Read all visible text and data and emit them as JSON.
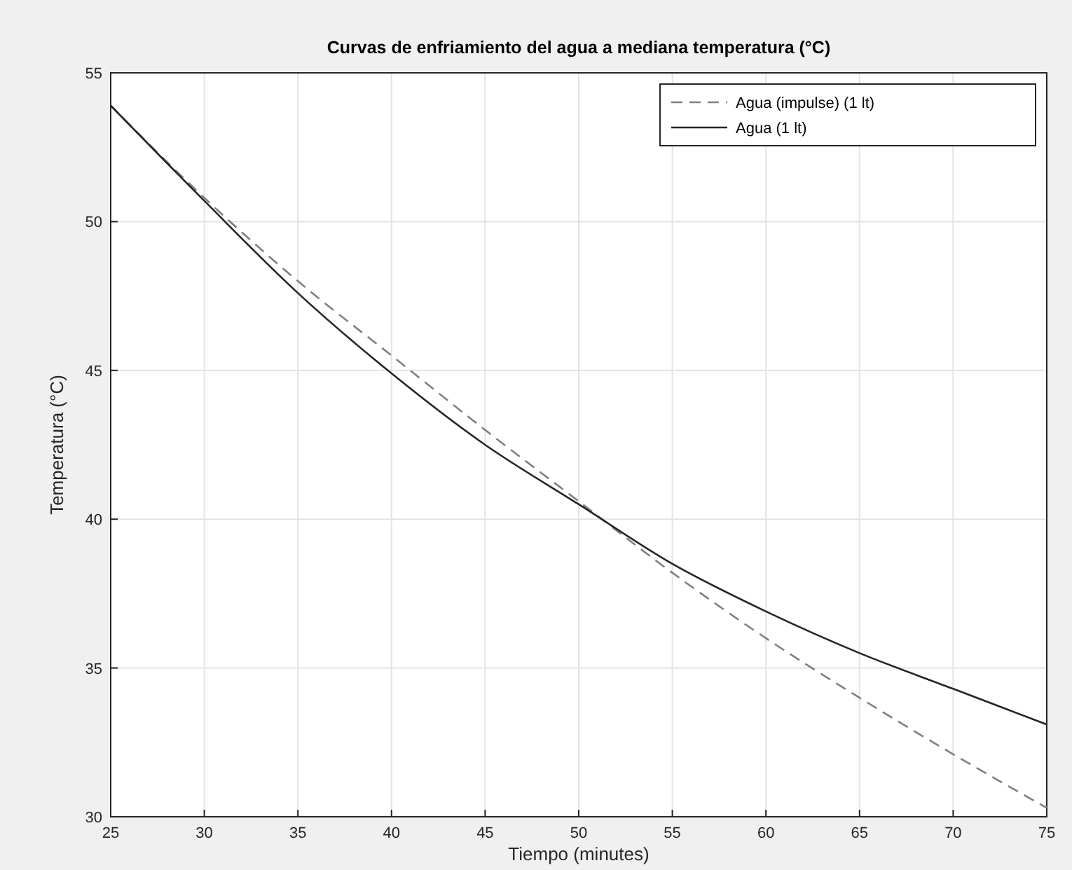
{
  "chart_data": {
    "type": "line",
    "title": "Curvas de enfriamiento del agua a mediana temperatura (°C)",
    "xlabel": "Tiempo (minutes)",
    "ylabel": "Temperatura (°C)",
    "x": [
      25,
      30,
      35,
      40,
      45,
      50,
      55,
      60,
      65,
      70,
      75
    ],
    "series": [
      {
        "name": "Agua (impulse) (1 lt)",
        "color": "#808080",
        "line_style": "dashed",
        "values": [
          53.9,
          50.8,
          48.0,
          45.5,
          43.0,
          40.6,
          38.2,
          36.0,
          34.0,
          32.1,
          30.3
        ]
      },
      {
        "name": "Agua (1 lt)",
        "color": "#262626",
        "line_style": "solid",
        "values": [
          53.9,
          50.7,
          47.6,
          44.9,
          42.5,
          40.5,
          38.5,
          36.9,
          35.5,
          34.3,
          33.1
        ]
      }
    ],
    "xlim": [
      25,
      75
    ],
    "xticks": [
      25,
      30,
      35,
      40,
      45,
      50,
      55,
      60,
      65,
      70,
      75
    ],
    "ylim": [
      30,
      55
    ],
    "yticks": [
      30,
      35,
      40,
      45,
      50,
      55
    ],
    "grid": true,
    "legend": "top right",
    "marker": "none"
  }
}
